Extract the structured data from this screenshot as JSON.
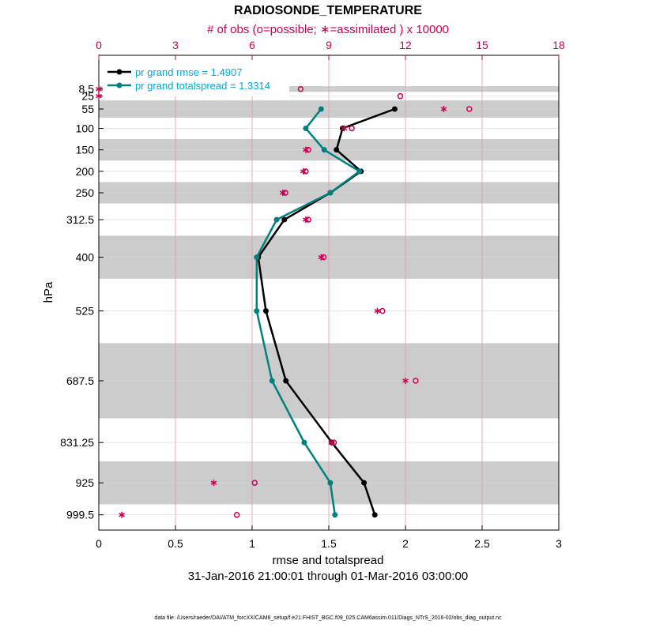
{
  "chart_data": {
    "type": "line",
    "title": "RADIOSONDE_TEMPERATURE",
    "top_axis_label": "# of obs (o=possible; ∗=assimilated ) x 10000",
    "xlabel": "rmse and totalspread",
    "ylabel": "hPa",
    "subtitle": "31-Jan-2016 21:00:01 through 01-Mar-2016 03:00:00",
    "footer": "data file: /Users/raeder/DAI/ATM_forcXX/CAM6_setup/f.e21.FHIST_BGC.f09_025.CAM6assim.011/Diags_NTrS_2016-02/obs_diag_output.nc",
    "xlim": [
      0,
      3
    ],
    "x_ticks": [
      "0",
      "0.5",
      "1",
      "1.5",
      "2",
      "2.5",
      "3"
    ],
    "x_tick_values": [
      0,
      0.5,
      1,
      1.5,
      2,
      2.5,
      3
    ],
    "top_xlim": [
      0,
      18
    ],
    "top_ticks": [
      "0",
      "3",
      "6",
      "9",
      "12",
      "15",
      "18"
    ],
    "top_tick_values": [
      0,
      3,
      6,
      9,
      12,
      15,
      18
    ],
    "levels": [
      8.5,
      25,
      55,
      100,
      150,
      200,
      250,
      312.5,
      400,
      525,
      687.5,
      831.25,
      925,
      999.5
    ],
    "level_labels": [
      "8.5",
      "25",
      "55",
      "100",
      "150",
      "200",
      "250",
      "312.5",
      "400",
      "525",
      "687.5",
      "831.25",
      "925",
      "999.5"
    ],
    "shaded_bands_hPa": [
      [
        2,
        15
      ],
      [
        35,
        75
      ],
      [
        125,
        175
      ],
      [
        225,
        275
      ],
      [
        350,
        450
      ],
      [
        600,
        775
      ],
      [
        875,
        975
      ]
    ],
    "y_top_hPa": -70,
    "y_bottom_hPa": 1035,
    "series": [
      {
        "name": "pr grand rmse = 1.4907",
        "color": "#000000",
        "levels": [
          55,
          100,
          150,
          200,
          250,
          312.5,
          400,
          525,
          687.5,
          831.25,
          925,
          999.5
        ],
        "values": [
          1.93,
          1.59,
          1.55,
          1.71,
          1.51,
          1.21,
          1.04,
          1.09,
          1.22,
          1.52,
          1.73,
          1.8
        ]
      },
      {
        "name": "pr grand totalspread = 1.3314",
        "color": "#008080",
        "levels": [
          55,
          100,
          150,
          200,
          250,
          312.5,
          400,
          525,
          687.5,
          831.25,
          925,
          999.5
        ],
        "values": [
          1.45,
          1.35,
          1.47,
          1.7,
          1.51,
          1.16,
          1.03,
          1.03,
          1.13,
          1.34,
          1.51,
          1.54
        ]
      }
    ],
    "obs_possible": {
      "marker": "o",
      "color": "#cc0055",
      "levels": [
        8.5,
        25,
        55,
        100,
        150,
        200,
        250,
        312.5,
        400,
        525,
        687.5,
        831.25,
        925,
        999.5
      ],
      "counts": [
        7.9,
        11.8,
        14.5,
        9.9,
        8.2,
        8.1,
        7.3,
        8.2,
        8.8,
        11.1,
        12.4,
        9.2,
        6.1,
        5.4
      ]
    },
    "obs_assimilated": {
      "marker": "*",
      "color": "#cc0055",
      "levels": [
        8.5,
        25,
        55,
        100,
        150,
        200,
        250,
        312.5,
        400,
        525,
        687.5,
        831.25,
        925,
        999.5
      ],
      "counts": [
        0.0,
        0.0,
        13.5,
        9.6,
        8.1,
        8.0,
        7.2,
        8.1,
        8.7,
        10.9,
        12.0,
        9.1,
        4.5,
        0.9
      ]
    },
    "legend_position": "top-left"
  }
}
